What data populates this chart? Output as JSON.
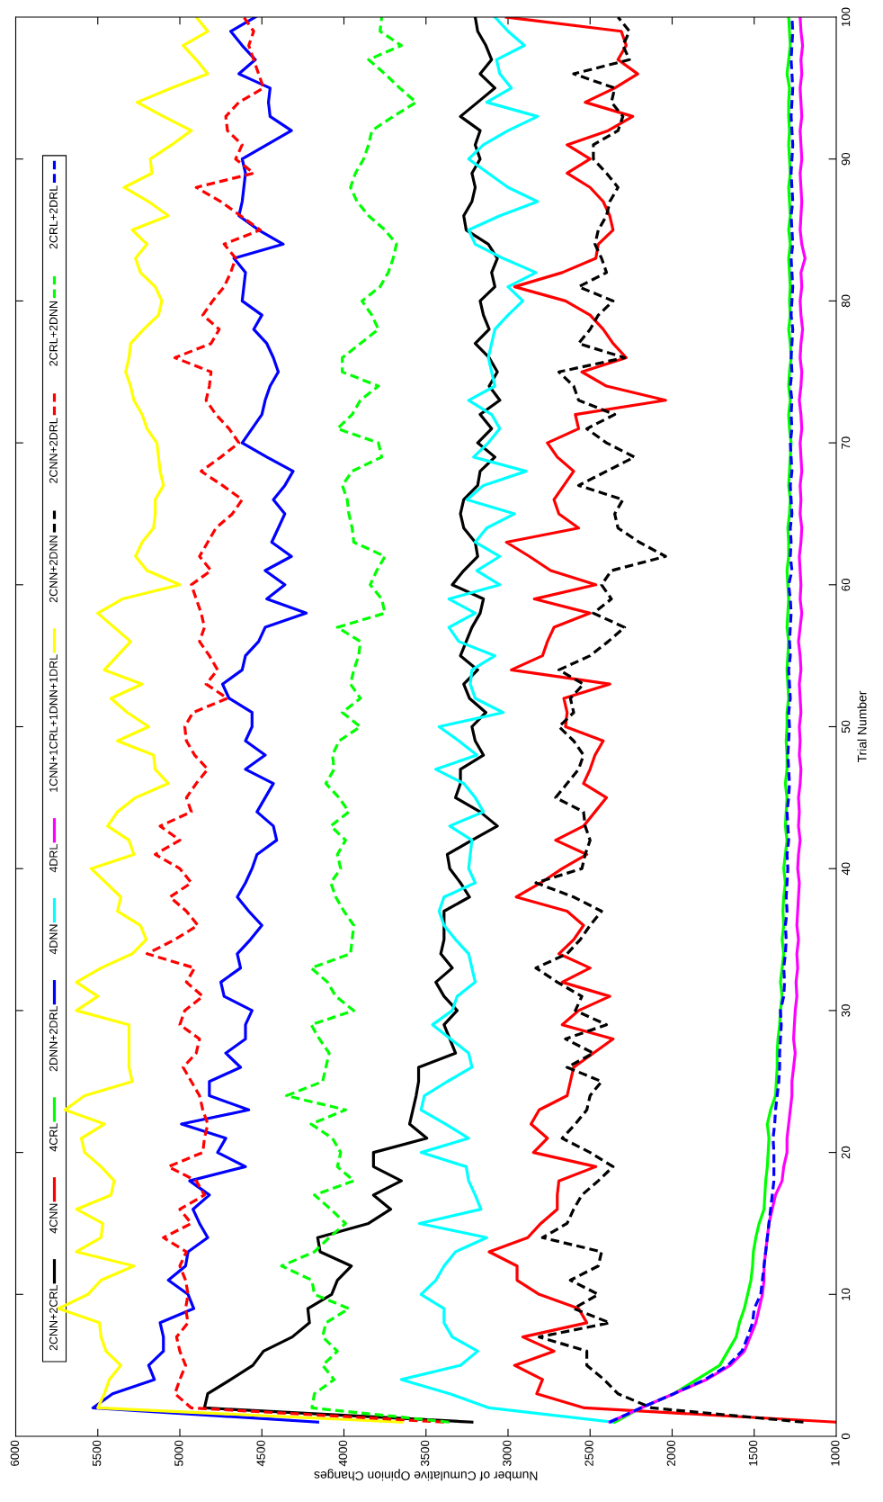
{
  "chart_data": {
    "type": "line",
    "orientation": "horizontal",
    "xlabel": "Number of Cumulative Opinion Changes",
    "ylabel": "Trial Number",
    "x": [
      1,
      2,
      3,
      4,
      5,
      6,
      7,
      8,
      9,
      10,
      11,
      12,
      13,
      14,
      15,
      16,
      17,
      18,
      19,
      20,
      21,
      22,
      23,
      24,
      25,
      26,
      27,
      28,
      29,
      30,
      31,
      32,
      33,
      34,
      35,
      36,
      37,
      38,
      39,
      40,
      41,
      42,
      43,
      44,
      45,
      46,
      47,
      48,
      49,
      50,
      51,
      52,
      53,
      54,
      55,
      56,
      57,
      58,
      59,
      60,
      61,
      62,
      63,
      64,
      65,
      66,
      67,
      68,
      69,
      70,
      71,
      72,
      73,
      74,
      75,
      76,
      77,
      78,
      79,
      80,
      81,
      82,
      83,
      84,
      85,
      86,
      87,
      88,
      89,
      90,
      91,
      92,
      93,
      94,
      95,
      96,
      97,
      98,
      99,
      100
    ],
    "xlim": [
      6000,
      1000
    ],
    "ylim": [
      0,
      100
    ],
    "xticks": [
      1000,
      1500,
      2000,
      2500,
      3000,
      3500,
      4000,
      4500,
      5000,
      5500,
      6000
    ],
    "yticks": [
      0,
      10,
      20,
      30,
      40,
      50,
      60,
      70,
      80,
      90,
      100
    ],
    "legend": "left",
    "series": [
      {
        "name": "2CNN+2CRL",
        "color": "#000000",
        "line_style": "solid",
        "values": [
          3220,
          4850,
          4830,
          4690,
          4555,
          4490,
          4315,
          4210,
          4220,
          4075,
          4040,
          3955,
          4145,
          4160,
          3850,
          3715,
          3820,
          3650,
          3820,
          3820,
          3495,
          3600,
          3580,
          3560,
          3545,
          3545,
          3320,
          3355,
          3390,
          3310,
          3390,
          3440,
          3340,
          3410,
          3390,
          3390,
          3390,
          3235,
          3290,
          3355,
          3370,
          3220,
          3065,
          3170,
          3320,
          3290,
          3290,
          3150,
          3200,
          3220,
          3135,
          3235,
          3270,
          3185,
          3290,
          3255,
          3220,
          3170,
          3150,
          3340,
          3270,
          3185,
          3200,
          3270,
          3290,
          3270,
          3185,
          3170,
          3080,
          3185,
          3100,
          3170,
          3050,
          3115,
          3065,
          3115,
          3200,
          3115,
          3150,
          3170,
          3080,
          3100,
          3065,
          3120,
          3255,
          3270,
          3220,
          3200,
          3220,
          3170,
          3200,
          3170,
          3290,
          3185,
          3080,
          3170,
          3100,
          3135,
          3185,
          3200
        ]
      },
      {
        "name": "4CNN",
        "color": "#ff0000",
        "line_style": "solid",
        "values": [
          1000,
          2535,
          2825,
          2790,
          2960,
          2720,
          2910,
          2520,
          2570,
          2810,
          2945,
          2945,
          3115,
          2880,
          2800,
          2700,
          2700,
          2690,
          2465,
          2845,
          2760,
          2860,
          2810,
          2640,
          2620,
          2600,
          2480,
          2360,
          2670,
          2570,
          2380,
          2670,
          2500,
          2690,
          2600,
          2540,
          2640,
          2950,
          2800,
          2670,
          2520,
          2710,
          2540,
          2470,
          2400,
          2540,
          2500,
          2470,
          2420,
          2650,
          2640,
          2660,
          2380,
          2980,
          2790,
          2760,
          2720,
          2500,
          2840,
          2465,
          2740,
          2870,
          3010,
          2570,
          2690,
          2720,
          2660,
          2600,
          2700,
          2760,
          2570,
          2590,
          2040,
          2400,
          2550,
          2280,
          2360,
          2420,
          2500,
          2650,
          2960,
          2670,
          2465,
          2450,
          2360,
          2380,
          2420,
          2500,
          2640,
          2500,
          2640,
          2390,
          2240,
          2530,
          2350,
          2210,
          2330,
          2280,
          2310,
          3010
        ]
      },
      {
        "name": "4CRL",
        "color": "#00ff00",
        "line_style": "solid",
        "values": [
          2350,
          2190,
          1990,
          1850,
          1710,
          1660,
          1610,
          1590,
          1560,
          1540,
          1520,
          1510,
          1505,
          1490,
          1470,
          1440,
          1435,
          1430,
          1420,
          1415,
          1410,
          1420,
          1400,
          1370,
          1365,
          1360,
          1360,
          1355,
          1345,
          1340,
          1330,
          1340,
          1330,
          1320,
          1330,
          1320,
          1325,
          1320,
          1310,
          1320,
          1310,
          1300,
          1310,
          1305,
          1300,
          1310,
          1300,
          1300,
          1305,
          1300,
          1300,
          1290,
          1295,
          1300,
          1295,
          1290,
          1300,
          1295,
          1290,
          1295,
          1300,
          1290,
          1290,
          1295,
          1285,
          1280,
          1290,
          1285,
          1280,
          1275,
          1285,
          1290,
          1280,
          1290,
          1285,
          1275,
          1280,
          1290,
          1280,
          1285,
          1280,
          1285,
          1290,
          1280,
          1290,
          1280,
          1285,
          1290,
          1280,
          1285,
          1290,
          1285,
          1290,
          1290,
          1285,
          1300,
          1290,
          1280,
          1285,
          1290
        ]
      },
      {
        "name": "2DNN+2DRL",
        "color": "#0000ff",
        "line_style": "solid",
        "values": [
          4160,
          5530,
          5410,
          5155,
          5190,
          5100,
          5100,
          5120,
          4915,
          4950,
          5070,
          4965,
          4950,
          4830,
          4880,
          4920,
          4820,
          4940,
          4600,
          4770,
          4720,
          4990,
          4580,
          4820,
          4820,
          4630,
          4720,
          4600,
          4600,
          4560,
          4730,
          4750,
          4630,
          4650,
          4570,
          4500,
          4580,
          4650,
          4600,
          4560,
          4530,
          4410,
          4430,
          4530,
          4480,
          4430,
          4600,
          4480,
          4600,
          4560,
          4560,
          4700,
          4740,
          4620,
          4600,
          4520,
          4480,
          4230,
          4470,
          4360,
          4480,
          4320,
          4440,
          4400,
          4360,
          4430,
          4360,
          4310,
          4470,
          4620,
          4560,
          4500,
          4480,
          4450,
          4400,
          4430,
          4470,
          4550,
          4500,
          4620,
          4610,
          4600,
          4670,
          4370,
          4520,
          4640,
          4620,
          4610,
          4600,
          4620,
          4470,
          4320,
          4450,
          4460,
          4450,
          4640,
          4540,
          4620,
          4690,
          4540
        ]
      },
      {
        "name": "4DNN",
        "color": "#00ffff",
        "line_style": "solid",
        "values": [
          2365,
          3115,
          3355,
          3650,
          3290,
          3185,
          3340,
          3390,
          3390,
          3530,
          3440,
          3390,
          3320,
          3130,
          3540,
          3165,
          3200,
          3240,
          3255,
          3530,
          3240,
          3380,
          3530,
          3510,
          3370,
          3220,
          3240,
          3350,
          3460,
          3340,
          3310,
          3200,
          3220,
          3240,
          3320,
          3390,
          3420,
          3390,
          3200,
          3240,
          3230,
          3220,
          3355,
          3150,
          3200,
          3270,
          3440,
          3190,
          3300,
          3420,
          3030,
          3200,
          3230,
          3220,
          3080,
          3300,
          3360,
          3200,
          3360,
          3050,
          3190,
          3050,
          3200,
          3130,
          2960,
          3250,
          3150,
          2890,
          3210,
          3120,
          3050,
          3100,
          3240,
          3080,
          3100,
          3120,
          3100,
          3080,
          3000,
          2910,
          3000,
          2830,
          3030,
          3200,
          3240,
          3050,
          2820,
          3000,
          3120,
          3240,
          3150,
          3000,
          2820,
          3130,
          2980,
          3050,
          3070,
          2900,
          3000,
          3080
        ]
      },
      {
        "name": "4DRL",
        "color": "#ff00ff",
        "line_style": "solid",
        "values": [
          2380,
          2190,
          1990,
          1790,
          1645,
          1560,
          1525,
          1490,
          1470,
          1450,
          1440,
          1440,
          1430,
          1420,
          1410,
          1390,
          1370,
          1330,
          1320,
          1300,
          1300,
          1290,
          1280,
          1270,
          1270,
          1260,
          1250,
          1260,
          1255,
          1250,
          1240,
          1245,
          1235,
          1240,
          1230,
          1240,
          1235,
          1230,
          1225,
          1235,
          1230,
          1220,
          1230,
          1225,
          1230,
          1220,
          1215,
          1225,
          1220,
          1225,
          1215,
          1220,
          1225,
          1215,
          1220,
          1230,
          1220,
          1210,
          1220,
          1215,
          1220,
          1225,
          1215,
          1210,
          1220,
          1215,
          1220,
          1210,
          1215,
          1220,
          1210,
          1215,
          1225,
          1215,
          1210,
          1220,
          1215,
          1205,
          1215,
          1220,
          1210,
          1215,
          1190,
          1210,
          1220,
          1215,
          1210,
          1215,
          1220,
          1210,
          1215,
          1220,
          1210,
          1215,
          1220,
          1210,
          1215,
          1205,
          1215,
          1220
        ]
      },
      {
        "name": "1CNN+1CRL+1DNN+1DRL",
        "color": "#ffff00",
        "line_style": "solid",
        "values": [
          3650,
          5500,
          5460,
          5430,
          5360,
          5450,
          5480,
          5490,
          5740,
          5560,
          5480,
          5280,
          5630,
          5480,
          5470,
          5630,
          5420,
          5400,
          5480,
          5580,
          5600,
          5460,
          5700,
          5580,
          5290,
          5310,
          5310,
          5310,
          5310,
          5630,
          5500,
          5630,
          5480,
          5290,
          5205,
          5240,
          5380,
          5360,
          5450,
          5540,
          5280,
          5310,
          5440,
          5380,
          5270,
          5070,
          5150,
          5160,
          5380,
          5190,
          5320,
          5420,
          5230,
          5460,
          5380,
          5300,
          5400,
          5500,
          5350,
          5000,
          5200,
          5270,
          5230,
          5160,
          5150,
          5150,
          5100,
          5120,
          5130,
          5140,
          5200,
          5230,
          5280,
          5300,
          5330,
          5310,
          5300,
          5220,
          5130,
          5110,
          5150,
          5240,
          5270,
          5200,
          5290,
          5070,
          5190,
          5340,
          5170,
          5180,
          5050,
          4930,
          5100,
          5260,
          5050,
          4830,
          4900,
          4980,
          4830,
          4900
        ]
      },
      {
        "name": "2CNN+2DNN",
        "color": "#000000",
        "line_style": "dashed",
        "values": [
          1200,
          2125,
          2330,
          2415,
          2520,
          2520,
          2810,
          2380,
          2600,
          2450,
          2620,
          2450,
          2430,
          2790,
          2640,
          2600,
          2550,
          2450,
          2360,
          2500,
          2670,
          2590,
          2520,
          2500,
          2430,
          2640,
          2480,
          2650,
          2400,
          2590,
          2550,
          2700,
          2830,
          2640,
          2560,
          2500,
          2430,
          2600,
          2830,
          2550,
          2530,
          2500,
          2530,
          2540,
          2710,
          2640,
          2570,
          2540,
          2600,
          2690,
          2600,
          2620,
          2540,
          2690,
          2500,
          2390,
          2290,
          2480,
          2370,
          2430,
          2370,
          2040,
          2200,
          2330,
          2350,
          2300,
          2570,
          2400,
          2230,
          2400,
          2520,
          2350,
          2570,
          2600,
          2690,
          2290,
          2570,
          2500,
          2450,
          2360,
          2570,
          2400,
          2430,
          2470,
          2450,
          2400,
          2380,
          2330,
          2400,
          2480,
          2480,
          2330,
          2300,
          2370,
          2350,
          2600,
          2260,
          2300,
          2260,
          2330
        ]
      },
      {
        "name": "2CNN+2DRL",
        "color": "#ff0000",
        "line_style": "dashed",
        "values": [
          3390,
          4930,
          5030,
          5000,
          4965,
          5000,
          5020,
          4950,
          4965,
          4950,
          4965,
          5000,
          4960,
          5100,
          4930,
          5000,
          4850,
          4900,
          5070,
          4860,
          4850,
          4830,
          4860,
          4880,
          4930,
          4980,
          4900,
          4880,
          5000,
          4970,
          4860,
          4960,
          4910,
          5200,
          5030,
          4890,
          4960,
          5060,
          4930,
          5000,
          5150,
          5000,
          5120,
          4930,
          4960,
          4900,
          4830,
          4910,
          4960,
          4970,
          4920,
          4710,
          4840,
          4770,
          4820,
          4880,
          4850,
          4870,
          4900,
          4930,
          4810,
          4880,
          4830,
          4780,
          4680,
          4620,
          4740,
          4870,
          4750,
          4640,
          4700,
          4780,
          4840,
          4820,
          4810,
          5030,
          4810,
          4760,
          4860,
          4800,
          4730,
          4690,
          4660,
          4730,
          4510,
          4630,
          4750,
          4900,
          4550,
          4660,
          4620,
          4710,
          4720,
          4640,
          4490,
          4520,
          4550,
          4580,
          4550,
          4610
        ]
      },
      {
        "name": "2CRL+2DNN",
        "color": "#00ff00",
        "line_style": "dashed",
        "values": [
          3360,
          4195,
          4180,
          4060,
          4130,
          4040,
          4130,
          4110,
          3970,
          4180,
          4195,
          4380,
          4180,
          4090,
          3990,
          4080,
          4180,
          3940,
          4040,
          4020,
          4070,
          4200,
          3990,
          4350,
          4130,
          4110,
          4090,
          4150,
          4200,
          3940,
          4050,
          4100,
          4200,
          3960,
          3950,
          3940,
          4000,
          4050,
          4080,
          4020,
          4040,
          3990,
          4080,
          3970,
          4030,
          4110,
          4060,
          4070,
          4030,
          3900,
          4010,
          3900,
          3960,
          3940,
          3910,
          3900,
          4040,
          3750,
          3770,
          3840,
          3800,
          3750,
          3940,
          3950,
          3970,
          3980,
          4010,
          3950,
          3770,
          3790,
          4040,
          3950,
          3900,
          3790,
          4010,
          4010,
          3900,
          3790,
          3830,
          3890,
          3780,
          3730,
          3700,
          3680,
          3750,
          3850,
          3920,
          3960,
          3930,
          3880,
          3850,
          3830,
          3700,
          3560,
          3660,
          3750,
          3850,
          3650,
          3780,
          3770
        ]
      },
      {
        "name": "2CRL+2DRL",
        "color": "#0000ff",
        "line_style": "dashed",
        "values": [
          2380,
          2190,
          1990,
          1800,
          1660,
          1575,
          1540,
          1510,
          1500,
          1460,
          1450,
          1440,
          1430,
          1420,
          1410,
          1400,
          1390,
          1380,
          1380,
          1380,
          1385,
          1375,
          1370,
          1360,
          1350,
          1345,
          1345,
          1340,
          1335,
          1340,
          1320,
          1315,
          1320,
          1310,
          1305,
          1310,
          1300,
          1305,
          1300,
          1295,
          1300,
          1290,
          1295,
          1300,
          1290,
          1285,
          1290,
          1295,
          1290,
          1285,
          1290,
          1280,
          1285,
          1290,
          1280,
          1285,
          1280,
          1275,
          1280,
          1290,
          1270,
          1280,
          1275,
          1280,
          1270,
          1275,
          1280,
          1270,
          1275,
          1280,
          1270,
          1275,
          1270,
          1280,
          1270,
          1275,
          1270,
          1265,
          1275,
          1270,
          1265,
          1270,
          1275,
          1265,
          1270,
          1275,
          1265,
          1270,
          1275,
          1270,
          1265,
          1270,
          1275,
          1270,
          1265,
          1270,
          1275,
          1270,
          1265,
          1270
        ]
      }
    ]
  }
}
